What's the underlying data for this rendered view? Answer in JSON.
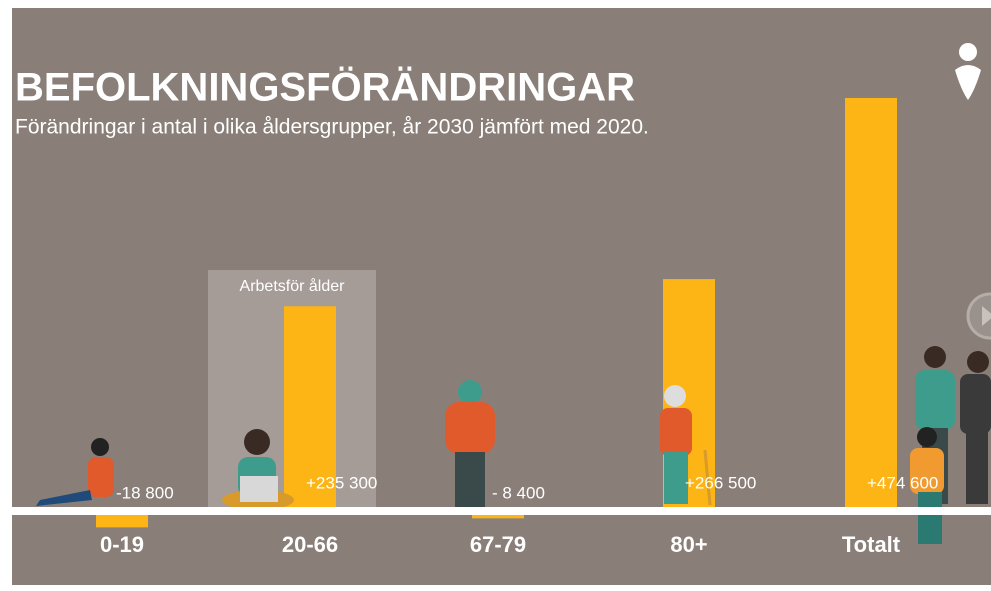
{
  "chart_data": {
    "type": "bar",
    "title": "BEFOLKNINGSFÖRÄNDRINGAR",
    "subtitle": "Förändringar i antal i olika åldersgrupper, år 2030 jämfört med 2020.",
    "annotation": "Arbetsför ålder",
    "categories": [
      "0-19",
      "20-66",
      "67-79",
      "80+",
      "Totalt"
    ],
    "values": [
      -18800,
      235300,
      -8400,
      266500,
      474600
    ],
    "value_labels": [
      "-18 800",
      "+235 300",
      "- 8 400",
      "+266 500",
      "+474 600"
    ],
    "color": "#fdb515"
  }
}
